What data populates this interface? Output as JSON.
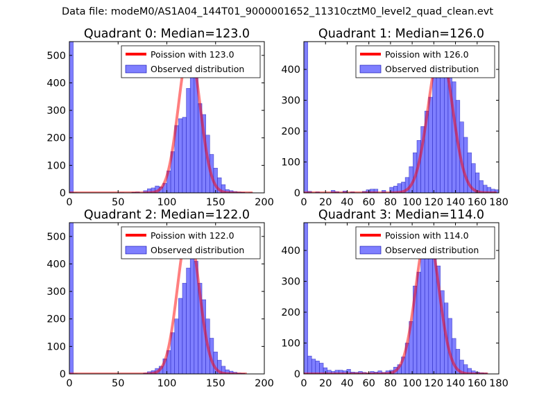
{
  "suptitle": "Data file: modeM0/AS1A04_144T01_9000001652_11310cztM0_level2_quad_clean.evt",
  "colors": {
    "poisson_line": "#ff0000",
    "histogram_fill": "#7f7fff",
    "histogram_edge": "#0000aa"
  },
  "chart_data": [
    {
      "type": "bar",
      "title": "Quadrant 0: Median=123.0",
      "xlim": [
        0,
        200
      ],
      "ylim": [
        0,
        550
      ],
      "xticks": [
        0,
        50,
        100,
        150,
        200
      ],
      "yticks": [
        0,
        100,
        200,
        300,
        400,
        500
      ],
      "legend": {
        "placement": "top-right",
        "line_label": "Poission with 123.0",
        "bar_label": "Observed distribution"
      },
      "bin_width": 4,
      "bins": [
        [
          0,
          560
        ],
        [
          4,
          1
        ],
        [
          52,
          1
        ],
        [
          64,
          2
        ],
        [
          68,
          3
        ],
        [
          76,
          8
        ],
        [
          80,
          15
        ],
        [
          84,
          18
        ],
        [
          88,
          25
        ],
        [
          92,
          22
        ],
        [
          96,
          35
        ],
        [
          100,
          80
        ],
        [
          104,
          150
        ],
        [
          108,
          245
        ],
        [
          112,
          270
        ],
        [
          116,
          275
        ],
        [
          120,
          380
        ],
        [
          124,
          425
        ],
        [
          128,
          460
        ],
        [
          132,
          325
        ],
        [
          136,
          285
        ],
        [
          140,
          210
        ],
        [
          144,
          140
        ],
        [
          148,
          90
        ],
        [
          152,
          55
        ],
        [
          156,
          30
        ],
        [
          160,
          12
        ],
        [
          164,
          8
        ],
        [
          168,
          5
        ],
        [
          172,
          3
        ],
        [
          176,
          2
        ],
        [
          184,
          1
        ]
      ],
      "poisson": {
        "mean": 123.0,
        "peak": 525,
        "sigma": 11.1,
        "x_range": [
          0,
          188
        ]
      }
    },
    {
      "type": "bar",
      "title": "Quadrant 1: Median=126.0",
      "xlim": [
        0,
        180
      ],
      "ylim": [
        0,
        490
      ],
      "xticks": [
        0,
        20,
        40,
        60,
        80,
        100,
        120,
        140,
        160,
        180
      ],
      "yticks": [
        0,
        100,
        200,
        300,
        400
      ],
      "legend": {
        "placement": "top-right",
        "line_label": "Poission with 126.0",
        "bar_label": "Observed distribution"
      },
      "bin_width": 3.6,
      "bins": [
        [
          0,
          490
        ],
        [
          3.6,
          5
        ],
        [
          10.8,
          3
        ],
        [
          25.2,
          8
        ],
        [
          28.8,
          4
        ],
        [
          36,
          6
        ],
        [
          43.2,
          3
        ],
        [
          54,
          5
        ],
        [
          57.6,
          10
        ],
        [
          61.2,
          12
        ],
        [
          64.8,
          12
        ],
        [
          72,
          8
        ],
        [
          79.2,
          18
        ],
        [
          82.8,
          22
        ],
        [
          86.4,
          30
        ],
        [
          90,
          35
        ],
        [
          93.6,
          50
        ],
        [
          97.2,
          85
        ],
        [
          100.8,
          130
        ],
        [
          104.4,
          170
        ],
        [
          108,
          215
        ],
        [
          111.6,
          265
        ],
        [
          115.2,
          310
        ],
        [
          118.8,
          380
        ],
        [
          122.4,
          410
        ],
        [
          126,
          440
        ],
        [
          129.6,
          450
        ],
        [
          133.2,
          425
        ],
        [
          136.8,
          360
        ],
        [
          140.4,
          300
        ],
        [
          144,
          230
        ],
        [
          147.6,
          180
        ],
        [
          151.2,
          130
        ],
        [
          154.8,
          95
        ],
        [
          158.4,
          65
        ],
        [
          162,
          40
        ],
        [
          165.6,
          25
        ],
        [
          169.2,
          18
        ],
        [
          172.8,
          12
        ],
        [
          176.4,
          10
        ]
      ],
      "poisson": {
        "mean": 126.0,
        "peak": 462,
        "sigma": 11.2,
        "x_range": [
          0,
          178
        ]
      }
    },
    {
      "type": "bar",
      "title": "Quadrant 2: Median=122.0",
      "xlim": [
        0,
        200
      ],
      "ylim": [
        0,
        550
      ],
      "xticks": [
        0,
        50,
        100,
        150,
        200
      ],
      "yticks": [
        0,
        100,
        200,
        300,
        400,
        500
      ],
      "legend": {
        "placement": "top-right",
        "line_label": "Poission with 122.0",
        "bar_label": "Observed distribution"
      },
      "bin_width": 4,
      "bins": [
        [
          0,
          560
        ],
        [
          4,
          1
        ],
        [
          76,
          3
        ],
        [
          80,
          8
        ],
        [
          84,
          12
        ],
        [
          88,
          20
        ],
        [
          92,
          28
        ],
        [
          96,
          55
        ],
        [
          100,
          85
        ],
        [
          104,
          150
        ],
        [
          108,
          200
        ],
        [
          112,
          275
        ],
        [
          116,
          330
        ],
        [
          120,
          385
        ],
        [
          124,
          520
        ],
        [
          128,
          410
        ],
        [
          132,
          330
        ],
        [
          136,
          270
        ],
        [
          140,
          200
        ],
        [
          144,
          130
        ],
        [
          148,
          80
        ],
        [
          152,
          50
        ],
        [
          156,
          28
        ],
        [
          160,
          15
        ],
        [
          164,
          10
        ],
        [
          168,
          6
        ],
        [
          172,
          3
        ],
        [
          176,
          2
        ]
      ],
      "poisson": {
        "mean": 122.0,
        "peak": 525,
        "sigma": 11.0,
        "x_range": [
          0,
          182
        ]
      }
    },
    {
      "type": "bar",
      "title": "Quadrant 3: Median=114.0",
      "xlim": [
        0,
        180
      ],
      "ylim": [
        0,
        490
      ],
      "xticks": [
        0,
        20,
        40,
        60,
        80,
        100,
        120,
        140,
        160,
        180
      ],
      "yticks": [
        0,
        100,
        200,
        300,
        400
      ],
      "legend": {
        "placement": "top-right",
        "line_label": "Poission with 114.0",
        "bar_label": "Observed distribution"
      },
      "bin_width": 3.6,
      "bins": [
        [
          0,
          490
        ],
        [
          3.6,
          58
        ],
        [
          7.2,
          48
        ],
        [
          10.8,
          42
        ],
        [
          14.4,
          35
        ],
        [
          18,
          20
        ],
        [
          21.6,
          12
        ],
        [
          25.2,
          8
        ],
        [
          28.8,
          12
        ],
        [
          32.4,
          12
        ],
        [
          36,
          10
        ],
        [
          39.6,
          15
        ],
        [
          43.2,
          6
        ],
        [
          46.8,
          5
        ],
        [
          50.4,
          8
        ],
        [
          54,
          5
        ],
        [
          57.6,
          3
        ],
        [
          61.2,
          8
        ],
        [
          64.8,
          6
        ],
        [
          68.4,
          10
        ],
        [
          72,
          5
        ],
        [
          75.6,
          10
        ],
        [
          79.2,
          12
        ],
        [
          82.8,
          22
        ],
        [
          86.4,
          30
        ],
        [
          90,
          55
        ],
        [
          93.6,
          100
        ],
        [
          97.2,
          170
        ],
        [
          100.8,
          285
        ],
        [
          104.4,
          330
        ],
        [
          108,
          390
        ],
        [
          111.6,
          435
        ],
        [
          115.2,
          460
        ],
        [
          118.8,
          410
        ],
        [
          122.4,
          350
        ],
        [
          126,
          270
        ],
        [
          129.6,
          230
        ],
        [
          133.2,
          180
        ],
        [
          136.8,
          115
        ],
        [
          140.4,
          80
        ],
        [
          144,
          45
        ],
        [
          147.6,
          30
        ],
        [
          151.2,
          18
        ],
        [
          154.8,
          10
        ],
        [
          158.4,
          6
        ],
        [
          162,
          4
        ],
        [
          165.6,
          3
        ]
      ],
      "poisson": {
        "mean": 114.0,
        "peak": 462,
        "sigma": 10.6,
        "x_range": [
          0,
          170
        ]
      }
    }
  ]
}
